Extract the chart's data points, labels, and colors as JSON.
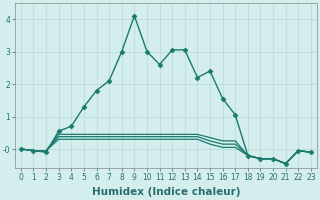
{
  "title": "",
  "xlabel": "Humidex (Indice chaleur)",
  "ylabel": "",
  "background_color": "#d4eeee",
  "line_color": "#1a7a6e",
  "grid_color": "#b8d8d8",
  "xlim": [
    -0.5,
    23.5
  ],
  "ylim": [
    -0.6,
    4.5
  ],
  "yticks": [
    0,
    1,
    2,
    3,
    4
  ],
  "ytick_labels": [
    "-0",
    "1",
    "2",
    "3",
    "4"
  ],
  "xticks": [
    0,
    1,
    2,
    3,
    4,
    5,
    6,
    7,
    8,
    9,
    10,
    11,
    12,
    13,
    14,
    15,
    16,
    17,
    18,
    19,
    20,
    21,
    22,
    23
  ],
  "series": [
    {
      "x": [
        0,
        1,
        2,
        3,
        4,
        5,
        6,
        7,
        8,
        9,
        10,
        11,
        12,
        13,
        14,
        15,
        16,
        17,
        18,
        19,
        20,
        21,
        22,
        23
      ],
      "y": [
        0.0,
        -0.05,
        -0.1,
        0.55,
        0.7,
        1.3,
        1.8,
        2.1,
        3.0,
        4.1,
        3.0,
        2.6,
        3.05,
        3.05,
        2.2,
        2.4,
        1.55,
        1.05,
        -0.2,
        -0.3,
        -0.3,
        -0.45,
        -0.05,
        -0.1
      ],
      "marker": "D",
      "markersize": 2.5,
      "linewidth": 1.0,
      "with_marker": true
    },
    {
      "x": [
        0,
        1,
        2,
        3,
        4,
        5,
        6,
        7,
        8,
        9,
        10,
        11,
        12,
        13,
        14,
        15,
        16,
        17,
        18,
        19,
        20,
        21,
        22,
        23
      ],
      "y": [
        0.0,
        -0.05,
        -0.05,
        0.45,
        0.45,
        0.45,
        0.45,
        0.45,
        0.45,
        0.45,
        0.45,
        0.45,
        0.45,
        0.45,
        0.45,
        0.35,
        0.25,
        0.25,
        -0.2,
        -0.3,
        -0.3,
        -0.45,
        -0.05,
        -0.1
      ],
      "marker": null,
      "markersize": 0,
      "linewidth": 0.9,
      "with_marker": false
    },
    {
      "x": [
        0,
        1,
        2,
        3,
        4,
        5,
        6,
        7,
        8,
        9,
        10,
        11,
        12,
        13,
        14,
        15,
        16,
        17,
        18,
        19,
        20,
        21,
        22,
        23
      ],
      "y": [
        0.0,
        -0.05,
        -0.05,
        0.38,
        0.38,
        0.38,
        0.38,
        0.38,
        0.38,
        0.38,
        0.38,
        0.38,
        0.38,
        0.38,
        0.38,
        0.25,
        0.15,
        0.15,
        -0.2,
        -0.3,
        -0.3,
        -0.45,
        -0.05,
        -0.1
      ],
      "marker": null,
      "markersize": 0,
      "linewidth": 0.9,
      "with_marker": false
    },
    {
      "x": [
        0,
        1,
        2,
        3,
        4,
        5,
        6,
        7,
        8,
        9,
        10,
        11,
        12,
        13,
        14,
        15,
        16,
        17,
        18,
        19,
        20,
        21,
        22,
        23
      ],
      "y": [
        0.0,
        -0.05,
        -0.05,
        0.3,
        0.3,
        0.3,
        0.3,
        0.3,
        0.3,
        0.3,
        0.3,
        0.3,
        0.3,
        0.3,
        0.3,
        0.15,
        0.05,
        0.05,
        -0.2,
        -0.3,
        -0.3,
        -0.45,
        -0.05,
        -0.1
      ],
      "marker": null,
      "markersize": 0,
      "linewidth": 0.9,
      "with_marker": false
    }
  ],
  "font_color": "#2a6e6e",
  "tick_fontsize": 5.5,
  "label_fontsize": 7.5
}
